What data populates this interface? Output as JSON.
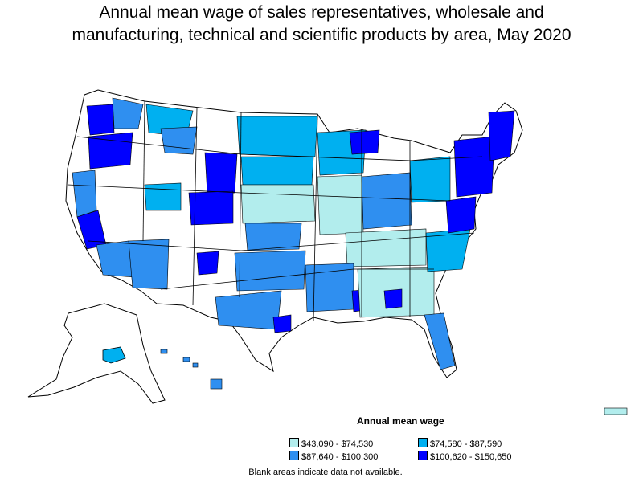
{
  "title_line1": "Annual mean wage of sales representatives, wholesale and",
  "title_line2": "manufacturing, technical and scientific products by area, May 2020",
  "legend": {
    "title": "Annual mean wage",
    "items": [
      {
        "label": "$43,090 - $74,530",
        "color": "#b2eded"
      },
      {
        "label": "$74,580 - $87,590",
        "color": "#00b0f0"
      },
      {
        "label": "$87,640 - $100,300",
        "color": "#2f8ff0"
      },
      {
        "label": "$100,620 - $150,650",
        "color": "#0000ff"
      }
    ]
  },
  "note": "Blank areas indicate data not available.",
  "colors": {
    "outline": "#000000",
    "no_data": "#ffffff"
  }
}
